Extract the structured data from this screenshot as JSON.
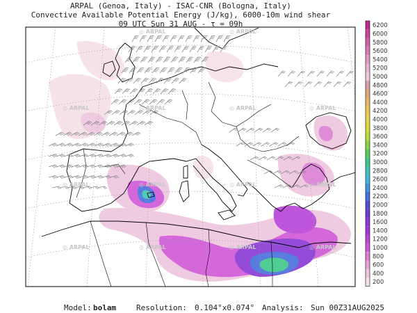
{
  "title": {
    "line1": "ARPAL (Genoa, Italy)  -  ISAC-CNR (Bologna, Italy)",
    "line2": "Convective Available Potential Energy (J/kg), 6000-10m wind shear",
    "line3": "09 UTC Sun 31 AUG  -  τ = 09h"
  },
  "footer": {
    "model_label": "Model:",
    "model_value": "bolam",
    "resolution_label": "Resolution:",
    "resolution_value": "0.104°x0.074°",
    "analysis_label": "Analysis:",
    "analysis_value": "Sun 00Z31AUG2025"
  },
  "watermark_text": "ARPAL",
  "colorbar": {
    "labels": [
      "6200",
      "6000",
      "5800",
      "5600",
      "5400",
      "5200",
      "5000",
      "4800",
      "4600",
      "4400",
      "4200",
      "4000",
      "3800",
      "3600",
      "3400",
      "3200",
      "3000",
      "2800",
      "2600",
      "2400",
      "2200",
      "2000",
      "1800",
      "1600",
      "1400",
      "1200",
      "1000",
      "800",
      "600",
      "400",
      "200"
    ],
    "colors": [
      "#c02a8c",
      "#c8439a",
      "#d060a6",
      "#d87cb4",
      "#e09ac4",
      "#e8b4d2",
      "#f0cadf",
      "#d8a0a8",
      "#e0a878",
      "#e8b868",
      "#ecc858",
      "#e6d44a",
      "#d6dc3c",
      "#b8dc3a",
      "#8cd448",
      "#58cc60",
      "#3ec888",
      "#3ec4b4",
      "#40b8d8",
      "#4494e0",
      "#4870dc",
      "#5050d0",
      "#6a3ed0",
      "#8838d4",
      "#a038d8",
      "#b844d8",
      "#d058d8",
      "#dc80d4",
      "#e6a4d6",
      "#eec6de",
      "#f6e0e8"
    ]
  },
  "map": {
    "ocean_color": "#ffffff",
    "land_outline_color": "#000000",
    "graticule_color": "#999999",
    "barb_color": "#8a8a8a"
  }
}
